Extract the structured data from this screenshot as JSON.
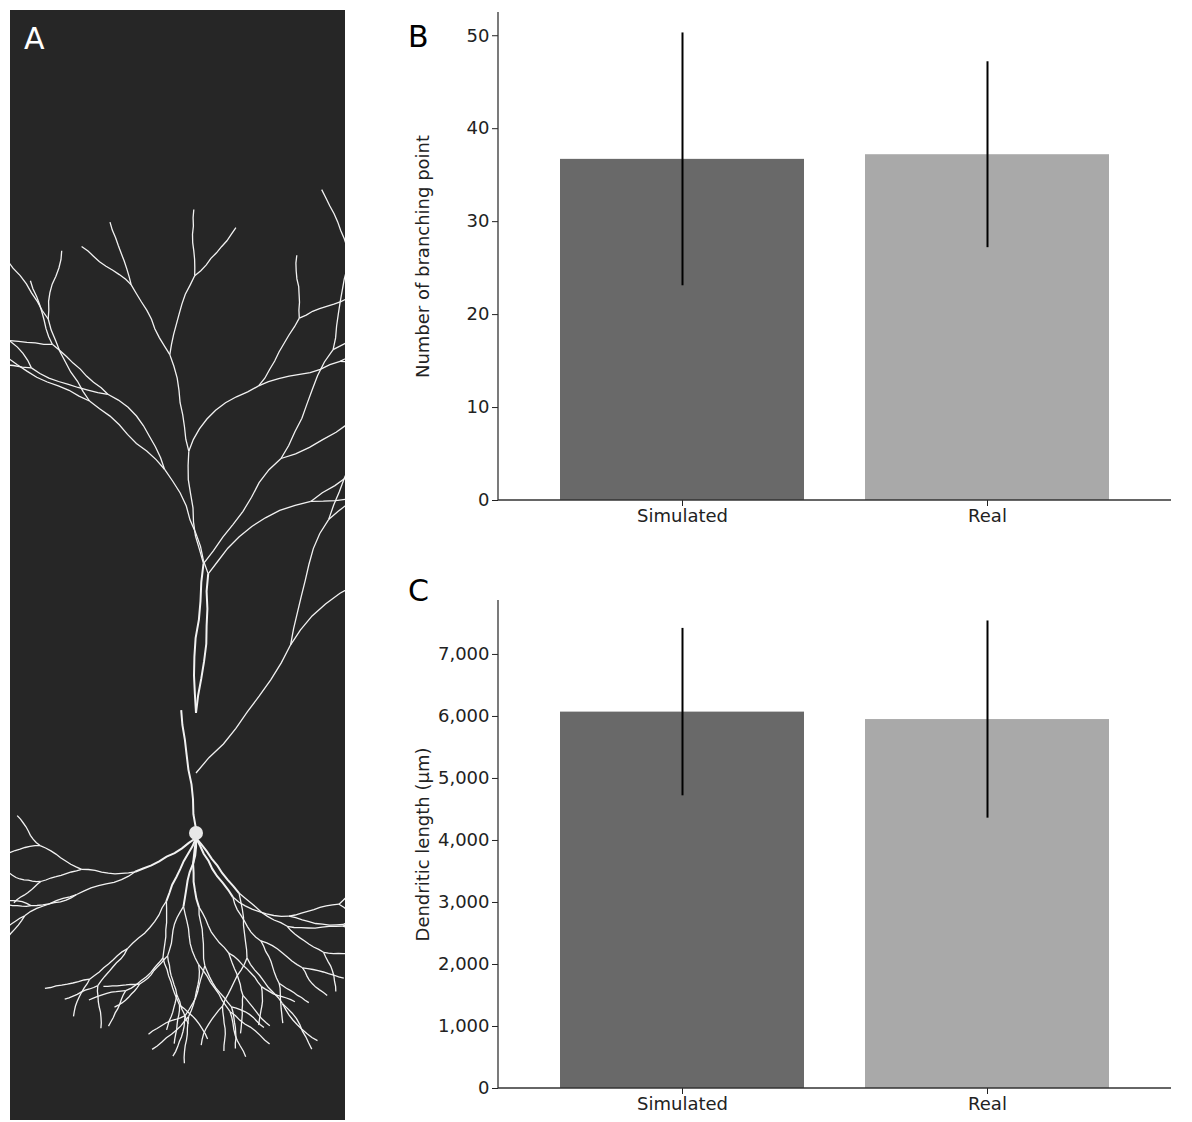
{
  "image_panel": {
    "panel": "A"
  },
  "chart_data": [
    {
      "type": "bar",
      "panel": "B",
      "categories": [
        "Simulated",
        "Real"
      ],
      "values": [
        36.7,
        37.2
      ],
      "errors": [
        13.6,
        10.0
      ],
      "colors": [
        "#696969",
        "#a9a9a9"
      ],
      "y_label": "Number of branching point",
      "ylim": [
        0,
        52.5
      ],
      "yticks": [
        0,
        10,
        20,
        30,
        40,
        50
      ]
    },
    {
      "type": "bar",
      "panel": "C",
      "categories": [
        "Simulated",
        "Real"
      ],
      "values": [
        6070,
        5950
      ],
      "errors": [
        1350,
        1590
      ],
      "colors": [
        "#696969",
        "#a9a9a9"
      ],
      "y_label": "Dendritic length (µm)",
      "ylim": [
        0,
        7870
      ],
      "yticks": [
        0,
        1000,
        2000,
        3000,
        4000,
        5000,
        6000,
        7000
      ]
    }
  ]
}
